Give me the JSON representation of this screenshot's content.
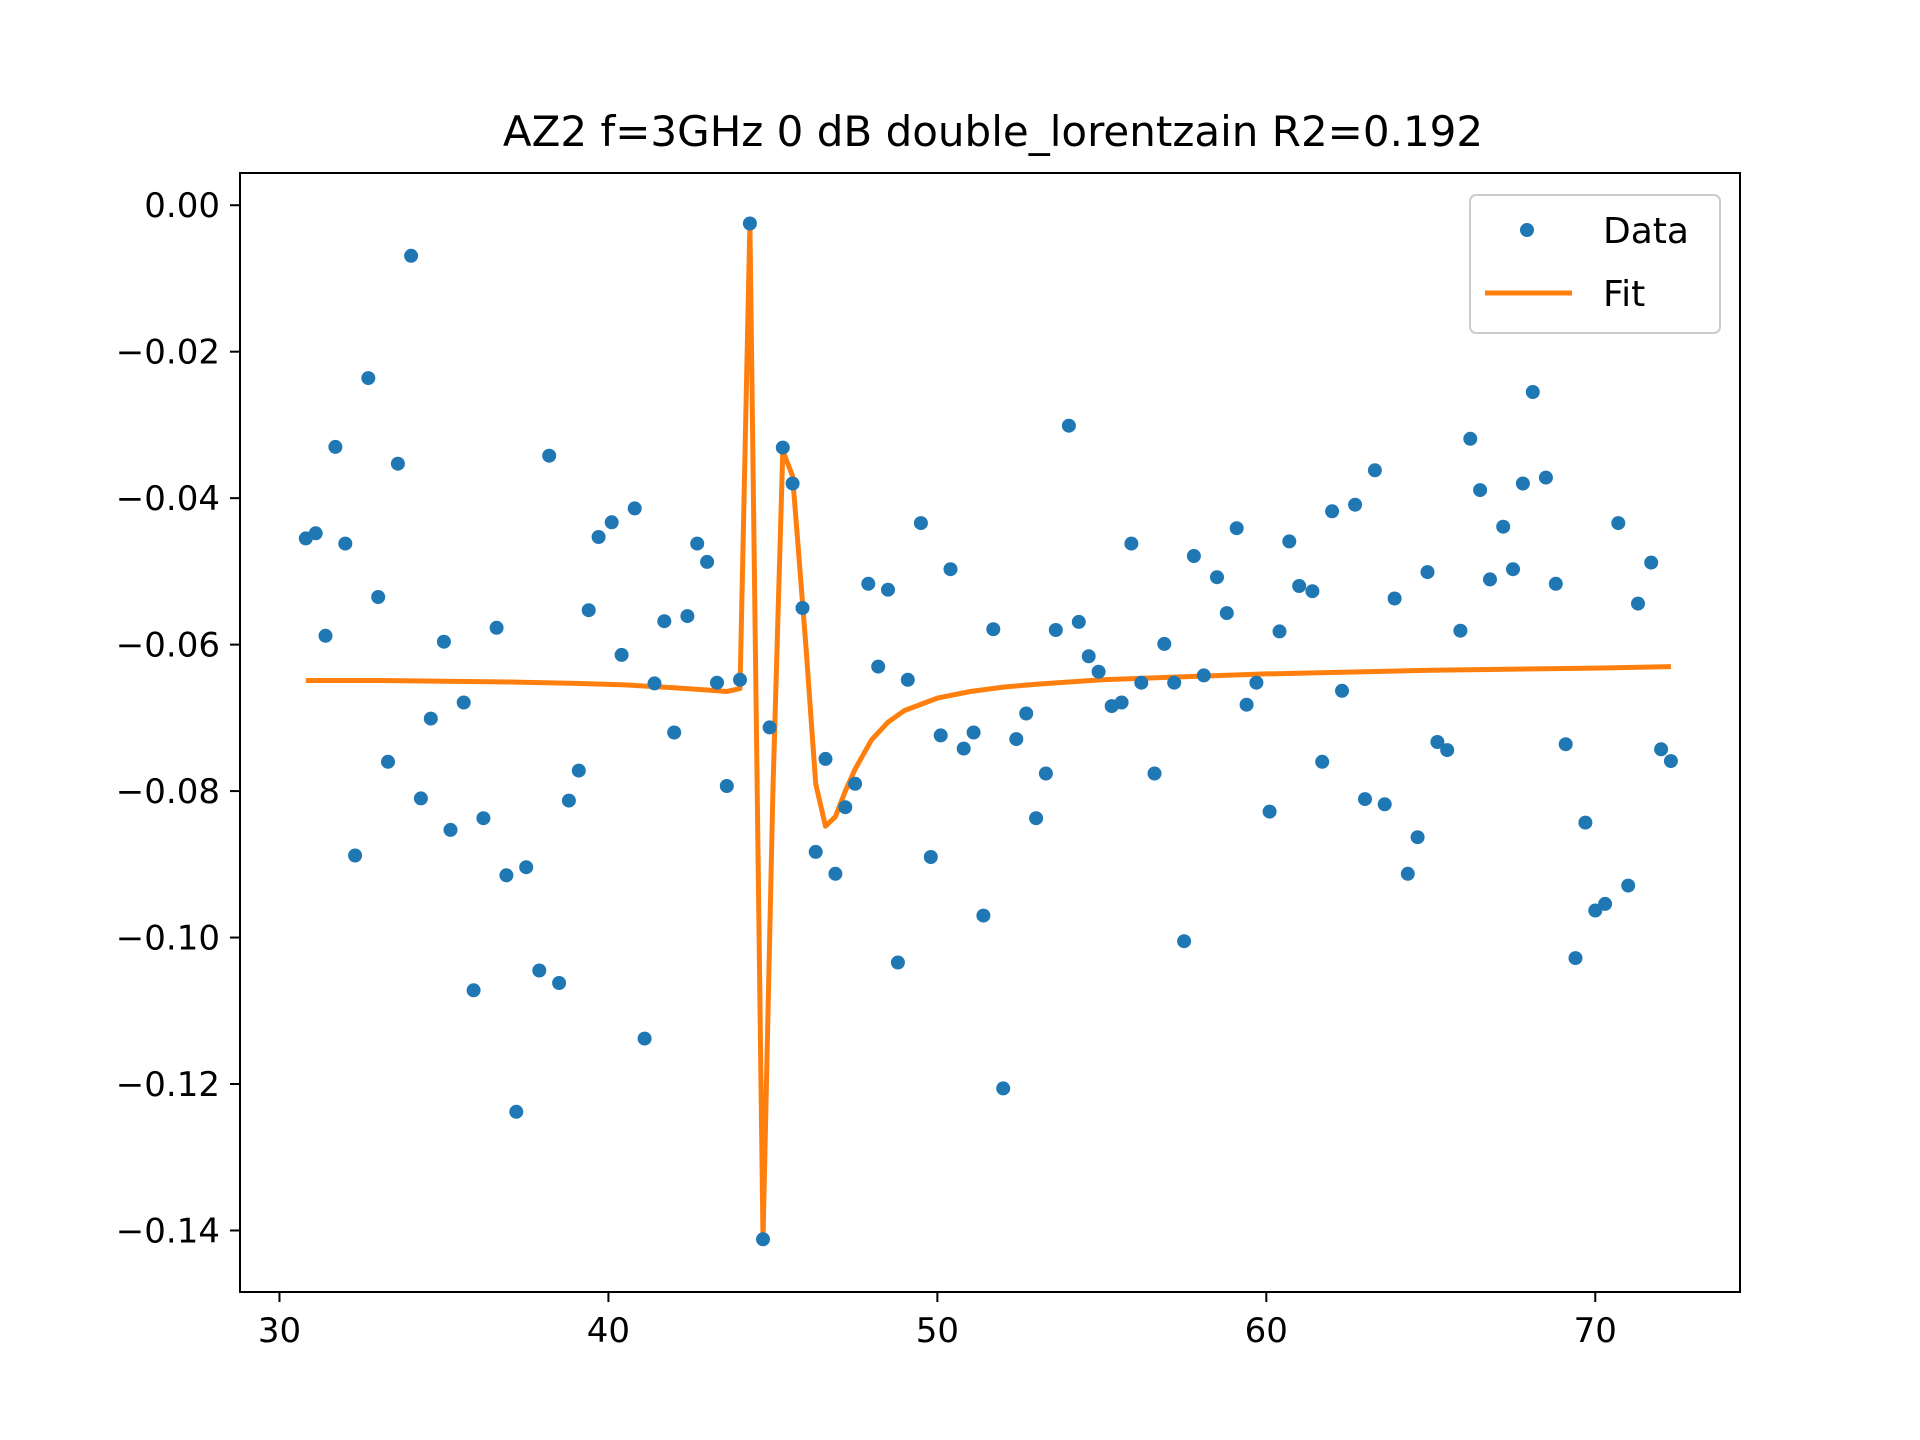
{
  "chart_data": {
    "type": "scatter",
    "title": "AZ2 f=3GHz 0 dB double_lorentzain R2=0.192",
    "xlabel": "",
    "ylabel": "",
    "xlim": [
      28.8,
      74.4
    ],
    "ylim": [
      -0.1484,
      0.0044
    ],
    "xticks": [
      30,
      40,
      50,
      60,
      70
    ],
    "xtick_labels": [
      "30",
      "40",
      "50",
      "60",
      "70"
    ],
    "yticks": [
      0.0,
      -0.02,
      -0.04,
      -0.06,
      -0.08,
      -0.1,
      -0.12,
      -0.14
    ],
    "ytick_labels": [
      "0.00",
      "−0.02",
      "−0.04",
      "−0.06",
      "−0.08",
      "−0.10",
      "−0.12",
      "−0.14"
    ],
    "grid": false,
    "legend_position": "top-right",
    "series": [
      {
        "name": "Data",
        "kind": "scatter",
        "color": "#1f77b4",
        "points": [
          [
            30.8,
            -0.0455
          ],
          [
            31.1,
            -0.0448
          ],
          [
            31.4,
            -0.0588
          ],
          [
            31.7,
            -0.033
          ],
          [
            32.0,
            -0.0462
          ],
          [
            32.3,
            -0.0888
          ],
          [
            32.7,
            -0.0236
          ],
          [
            33.0,
            -0.0535
          ],
          [
            33.3,
            -0.076
          ],
          [
            33.6,
            -0.0353
          ],
          [
            34.0,
            -0.0069
          ],
          [
            34.3,
            -0.081
          ],
          [
            34.6,
            -0.0701
          ],
          [
            35.0,
            -0.0596
          ],
          [
            35.2,
            -0.0853
          ],
          [
            35.6,
            -0.0679
          ],
          [
            35.9,
            -0.1072
          ],
          [
            36.2,
            -0.0837
          ],
          [
            36.6,
            -0.0577
          ],
          [
            36.9,
            -0.0915
          ],
          [
            37.2,
            -0.1238
          ],
          [
            37.5,
            -0.0904
          ],
          [
            37.9,
            -0.1045
          ],
          [
            38.2,
            -0.0342
          ],
          [
            38.5,
            -0.1062
          ],
          [
            38.8,
            -0.0813
          ],
          [
            39.1,
            -0.0772
          ],
          [
            39.4,
            -0.0553
          ],
          [
            39.7,
            -0.0453
          ],
          [
            40.1,
            -0.0433
          ],
          [
            40.4,
            -0.0614
          ],
          [
            40.8,
            -0.0414
          ],
          [
            41.1,
            -0.1138
          ],
          [
            41.4,
            -0.0653
          ],
          [
            41.7,
            -0.0568
          ],
          [
            42.0,
            -0.072
          ],
          [
            42.4,
            -0.0561
          ],
          [
            42.7,
            -0.0462
          ],
          [
            43.0,
            -0.0487
          ],
          [
            43.3,
            -0.0652
          ],
          [
            43.6,
            -0.0793
          ],
          [
            44.0,
            -0.0648
          ],
          [
            44.3,
            -0.0025
          ],
          [
            44.7,
            -0.1412
          ],
          [
            44.9,
            -0.0713
          ],
          [
            45.3,
            -0.0331
          ],
          [
            45.6,
            -0.038
          ],
          [
            45.9,
            -0.055
          ],
          [
            46.3,
            -0.0883
          ],
          [
            46.6,
            -0.0756
          ],
          [
            46.9,
            -0.0913
          ],
          [
            47.2,
            -0.0822
          ],
          [
            47.5,
            -0.079
          ],
          [
            47.9,
            -0.0517
          ],
          [
            48.2,
            -0.063
          ],
          [
            48.5,
            -0.0525
          ],
          [
            48.8,
            -0.1034
          ],
          [
            49.1,
            -0.0648
          ],
          [
            49.5,
            -0.0434
          ],
          [
            49.8,
            -0.089
          ],
          [
            50.1,
            -0.0724
          ],
          [
            50.4,
            -0.0497
          ],
          [
            50.8,
            -0.0742
          ],
          [
            51.1,
            -0.072
          ],
          [
            51.4,
            -0.097
          ],
          [
            51.7,
            -0.0579
          ],
          [
            52.0,
            -0.1206
          ],
          [
            52.4,
            -0.0729
          ],
          [
            52.7,
            -0.0694
          ],
          [
            53.0,
            -0.0837
          ],
          [
            53.3,
            -0.0776
          ],
          [
            53.6,
            -0.058
          ],
          [
            54.0,
            -0.0301
          ],
          [
            54.3,
            -0.0569
          ],
          [
            54.6,
            -0.0616
          ],
          [
            54.9,
            -0.0637
          ],
          [
            55.3,
            -0.0684
          ],
          [
            55.6,
            -0.0679
          ],
          [
            55.9,
            -0.0462
          ],
          [
            56.2,
            -0.0652
          ],
          [
            56.6,
            -0.0776
          ],
          [
            56.9,
            -0.0599
          ],
          [
            57.2,
            -0.0652
          ],
          [
            57.5,
            -0.1005
          ],
          [
            57.8,
            -0.0479
          ],
          [
            58.1,
            -0.0642
          ],
          [
            58.5,
            -0.0508
          ],
          [
            58.8,
            -0.0557
          ],
          [
            59.1,
            -0.0441
          ],
          [
            59.4,
            -0.0682
          ],
          [
            59.7,
            -0.0652
          ],
          [
            60.1,
            -0.0828
          ],
          [
            60.4,
            -0.0582
          ],
          [
            60.7,
            -0.0459
          ],
          [
            61.0,
            -0.052
          ],
          [
            61.4,
            -0.0527
          ],
          [
            61.7,
            -0.076
          ],
          [
            62.0,
            -0.0418
          ],
          [
            62.3,
            -0.0663
          ],
          [
            62.7,
            -0.0409
          ],
          [
            63.0,
            -0.0811
          ],
          [
            63.3,
            -0.0362
          ],
          [
            63.6,
            -0.0818
          ],
          [
            63.9,
            -0.0537
          ],
          [
            64.3,
            -0.0913
          ],
          [
            64.6,
            -0.0863
          ],
          [
            64.9,
            -0.0501
          ],
          [
            65.2,
            -0.0733
          ],
          [
            65.5,
            -0.0744
          ],
          [
            65.9,
            -0.0581
          ],
          [
            66.2,
            -0.0319
          ],
          [
            66.5,
            -0.0389
          ],
          [
            66.8,
            -0.0511
          ],
          [
            67.2,
            -0.0439
          ],
          [
            67.5,
            -0.0497
          ],
          [
            67.8,
            -0.038
          ],
          [
            68.1,
            -0.0255
          ],
          [
            68.5,
            -0.0372
          ],
          [
            68.8,
            -0.0517
          ],
          [
            69.1,
            -0.0736
          ],
          [
            69.4,
            -0.1028
          ],
          [
            69.7,
            -0.0843
          ],
          [
            70.0,
            -0.0963
          ],
          [
            70.3,
            -0.0954
          ],
          [
            70.7,
            -0.0434
          ],
          [
            71.0,
            -0.0929
          ],
          [
            71.3,
            -0.0544
          ],
          [
            71.7,
            -0.0488
          ],
          [
            72.0,
            -0.0743
          ],
          [
            72.3,
            -0.0759
          ]
        ]
      },
      {
        "name": "Fit",
        "kind": "line",
        "color": "#ff7f0e",
        "points": [
          [
            30.8,
            -0.0649
          ],
          [
            33.0,
            -0.0649
          ],
          [
            35.0,
            -0.065
          ],
          [
            37.0,
            -0.0651
          ],
          [
            39.0,
            -0.0653
          ],
          [
            40.5,
            -0.0655
          ],
          [
            42.0,
            -0.0659
          ],
          [
            43.0,
            -0.0662
          ],
          [
            43.6,
            -0.0664
          ],
          [
            44.0,
            -0.066
          ],
          [
            44.3,
            -0.0025
          ],
          [
            44.7,
            -0.1412
          ],
          [
            45.0,
            -0.08
          ],
          [
            45.3,
            -0.0335
          ],
          [
            45.6,
            -0.037
          ],
          [
            46.0,
            -0.06
          ],
          [
            46.3,
            -0.079
          ],
          [
            46.6,
            -0.0848
          ],
          [
            46.9,
            -0.0835
          ],
          [
            47.2,
            -0.08
          ],
          [
            47.5,
            -0.077
          ],
          [
            48.0,
            -0.073
          ],
          [
            48.5,
            -0.0706
          ],
          [
            49.0,
            -0.069
          ],
          [
            50.0,
            -0.0673
          ],
          [
            51.0,
            -0.0664
          ],
          [
            52.0,
            -0.0658
          ],
          [
            53.0,
            -0.0654
          ],
          [
            55.0,
            -0.0648
          ],
          [
            57.5,
            -0.0644
          ],
          [
            60.0,
            -0.064
          ],
          [
            65.0,
            -0.0635
          ],
          [
            70.0,
            -0.0632
          ],
          [
            72.3,
            -0.063
          ]
        ]
      }
    ]
  }
}
